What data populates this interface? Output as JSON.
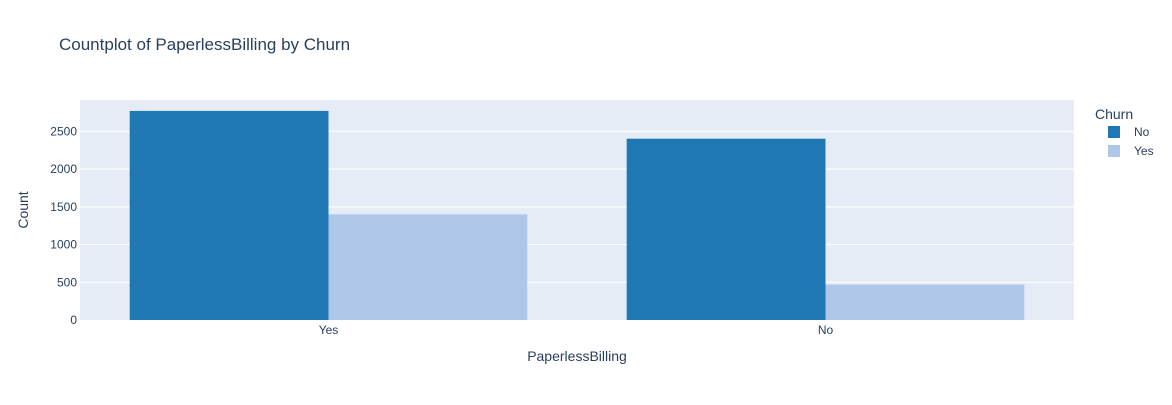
{
  "chart_data": {
    "type": "bar",
    "title": "Countplot of PaperlessBilling by Churn",
    "xlabel": "PaperlessBilling",
    "ylabel": "Count",
    "categories": [
      "Yes",
      "No"
    ],
    "series": [
      {
        "name": "No",
        "color": "#1f77b4",
        "values": [
          2771,
          2403
        ]
      },
      {
        "name": "Yes",
        "color": "#aec7e8",
        "values": [
          1400,
          469
        ]
      }
    ],
    "ylim": [
      0,
      2916
    ],
    "yticks": [
      0,
      500,
      1000,
      1500,
      2000,
      2500
    ],
    "grid": true,
    "legend": {
      "title": "Churn",
      "position": "right"
    },
    "colors": {
      "plot_background": "#e5ecf6",
      "gridline": "#ffffff",
      "text": "#2a3f5f"
    }
  }
}
